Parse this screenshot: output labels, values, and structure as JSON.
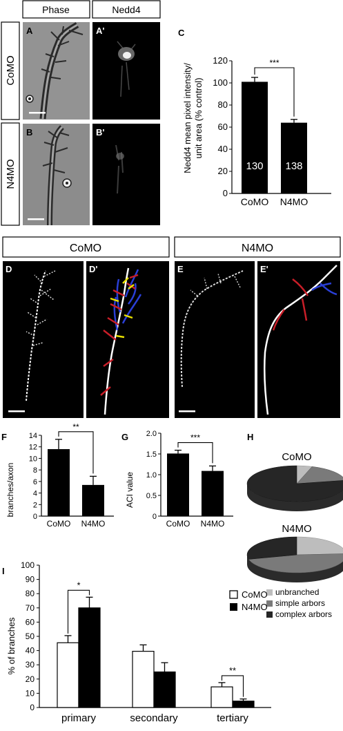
{
  "colors": {
    "accent_blue": "#2a3fd6",
    "accent_red": "#c81e28",
    "accent_yellow": "#e8e000",
    "neurite": "#ffffff"
  },
  "top": {
    "col_headers": [
      "Phase",
      "Nedd4"
    ],
    "row_labels": [
      "CoMO",
      "N4MO"
    ],
    "panel_letters": [
      "A",
      "A'",
      "B",
      "B'"
    ]
  },
  "panel_c": {
    "letter": "C",
    "sig": "***",
    "counts": [
      "130",
      "138"
    ],
    "chart_data": {
      "type": "bar",
      "categories": [
        "CoMO",
        "N4MO"
      ],
      "values": [
        101,
        64
      ],
      "errors": [
        4,
        3
      ],
      "ylabel_lines": [
        "Nedd4 mean pixel intensity/",
        "unit area (% control)"
      ],
      "ylim": [
        0,
        120
      ],
      "yticks": [
        "0",
        "20",
        "40",
        "60",
        "80",
        "100",
        "120"
      ]
    }
  },
  "middle": {
    "group_headers": [
      "CoMO",
      "N4MO"
    ],
    "panel_letters": [
      "D",
      "D'",
      "E",
      "E'"
    ]
  },
  "panel_f": {
    "letter": "F",
    "sig": "**",
    "chart_data": {
      "type": "bar",
      "categories": [
        "CoMO",
        "N4MO"
      ],
      "values": [
        11.6,
        5.4
      ],
      "errors": [
        1.7,
        1.5
      ],
      "ylabel": "branches/axon",
      "ylim": [
        0,
        14
      ],
      "yticks": [
        "0",
        "2",
        "4",
        "6",
        "8",
        "10",
        "12",
        "14"
      ]
    }
  },
  "panel_g": {
    "letter": "G",
    "sig": "***",
    "chart_data": {
      "type": "bar",
      "categories": [
        "CoMO",
        "N4MO"
      ],
      "values": [
        1.51,
        1.09
      ],
      "errors": [
        0.08,
        0.12
      ],
      "ylabel": "ACI value",
      "ylim": [
        0,
        2.0
      ],
      "yticks": [
        "0",
        "0.5",
        "1.0",
        "1.5",
        "2.0"
      ]
    }
  },
  "panel_h": {
    "letter": "H",
    "chart_data": [
      {
        "type": "pie",
        "title": "CoMO",
        "labels": [
          "unbranched",
          "simple arbors",
          "complex arbors"
        ],
        "values": [
          5,
          17,
          78
        ]
      },
      {
        "type": "pie",
        "title": "N4MO",
        "labels": [
          "unbranched",
          "simple arbors",
          "complex arbors"
        ],
        "values": [
          24,
          47,
          29
        ]
      }
    ],
    "legend_colors": [
      "#bdbdbd",
      "#7a7a7a",
      "#262626"
    ]
  },
  "panel_i": {
    "letter": "I",
    "sigs": [
      "*",
      "**"
    ],
    "chart_data": {
      "type": "bar",
      "categories": [
        "primary",
        "secondary",
        "tertiary"
      ],
      "series": [
        {
          "name": "CoMO",
          "values": [
            45.5,
            39.5,
            14.5
          ],
          "errors": [
            5,
            4.5,
            3
          ]
        },
        {
          "name": "N4MO",
          "values": [
            70,
            25,
            4.5
          ],
          "errors": [
            7.5,
            6.5,
            1.5
          ]
        }
      ],
      "ylabel": "% of branches",
      "ylim": [
        0,
        100
      ],
      "yticks": [
        "0",
        "10",
        "20",
        "30",
        "40",
        "50",
        "60",
        "70",
        "80",
        "90",
        "100"
      ]
    }
  }
}
